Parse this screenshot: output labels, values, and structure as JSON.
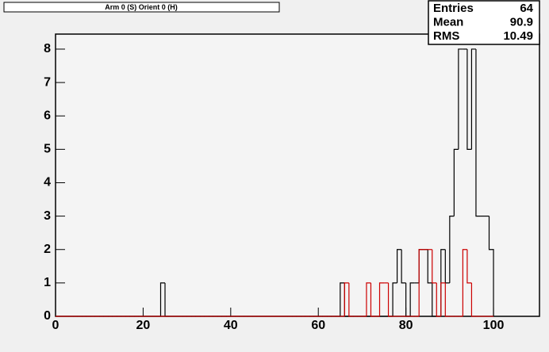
{
  "chart_data": {
    "type": "histogram",
    "title": "Arm 0 (S) Orient 0 (H)",
    "bins": [
      0,
      1,
      2,
      3,
      4,
      5,
      6,
      7,
      8,
      9,
      10,
      11,
      12,
      13,
      14,
      15,
      16,
      17,
      18,
      19,
      20,
      21,
      22,
      23,
      24,
      25,
      26,
      27,
      28,
      29,
      30,
      31,
      32,
      33,
      34,
      35,
      36,
      37,
      38,
      39,
      40,
      41,
      42,
      43,
      44,
      45,
      46,
      47,
      48,
      49,
      50,
      51,
      52,
      53,
      54,
      55,
      56,
      57,
      58,
      59,
      60,
      61,
      62,
      63,
      64,
      65,
      66,
      67,
      68,
      69,
      70,
      71,
      72,
      73,
      74,
      75,
      76,
      77,
      78,
      79,
      80,
      81,
      82,
      83,
      84,
      85,
      86,
      87,
      88,
      89,
      90,
      91,
      92,
      93,
      94,
      95,
      96,
      97,
      98,
      99,
      100
    ],
    "series": [
      {
        "color": "#000000",
        "values": [
          0,
          0,
          0,
          0,
          0,
          0,
          0,
          0,
          0,
          0,
          0,
          0,
          0,
          0,
          0,
          0,
          0,
          0,
          0,
          0,
          0,
          0,
          0,
          0,
          1,
          0,
          0,
          0,
          0,
          0,
          0,
          0,
          0,
          0,
          0,
          0,
          0,
          0,
          0,
          0,
          0,
          0,
          0,
          0,
          0,
          0,
          0,
          0,
          0,
          0,
          0,
          0,
          0,
          0,
          0,
          0,
          0,
          0,
          0,
          0,
          0,
          0,
          0,
          0,
          0,
          1,
          0,
          0,
          0,
          0,
          0,
          0,
          0,
          0,
          0,
          0,
          0,
          1,
          2,
          1,
          0,
          1,
          1,
          2,
          2,
          1,
          0,
          0,
          2,
          1,
          3,
          5,
          8,
          8,
          5,
          8,
          3,
          3,
          3,
          2
        ]
      },
      {
        "color": "#cc0000",
        "values": [
          0,
          0,
          0,
          0,
          0,
          0,
          0,
          0,
          0,
          0,
          0,
          0,
          0,
          0,
          0,
          0,
          0,
          0,
          0,
          0,
          0,
          0,
          0,
          0,
          0,
          0,
          0,
          0,
          0,
          0,
          0,
          0,
          0,
          0,
          0,
          0,
          0,
          0,
          0,
          0,
          0,
          0,
          0,
          0,
          0,
          0,
          0,
          0,
          0,
          0,
          0,
          0,
          0,
          0,
          0,
          0,
          0,
          0,
          0,
          0,
          0,
          0,
          0,
          0,
          0,
          0,
          1,
          0,
          0,
          0,
          0,
          1,
          0,
          0,
          1,
          1,
          0,
          0,
          0,
          0,
          0,
          0,
          0,
          2,
          2,
          2,
          1,
          0,
          1,
          0,
          0,
          0,
          0,
          2,
          1,
          0,
          0,
          0,
          0,
          0
        ]
      }
    ],
    "xlim": [
      0,
      110.5
    ],
    "xticks": [
      0,
      20,
      40,
      60,
      80,
      100
    ],
    "ylim": [
      0,
      8.45
    ],
    "yticks": [
      0,
      1,
      2,
      3,
      4,
      5,
      6,
      7,
      8
    ],
    "stats": [
      {
        "label": "Entries",
        "value": 64
      },
      {
        "label": "Mean",
        "value": 90.9
      },
      {
        "label": "RMS",
        "value": 10.49
      }
    ]
  }
}
